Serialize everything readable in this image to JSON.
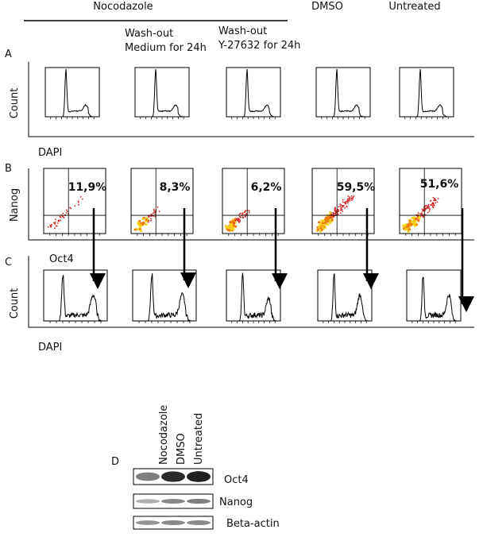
{
  "header": {
    "columns": [
      {
        "lines": [
          "Nocodazole"
        ]
      },
      {
        "lines": [
          "Wash-out",
          "Medium for 24h"
        ]
      },
      {
        "lines": [
          "Wash-out",
          "Y-27632 for 24h"
        ]
      },
      {
        "lines": [
          "DMSO"
        ]
      },
      {
        "lines": [
          "Untreated"
        ]
      }
    ]
  },
  "panels": [
    {
      "label": "A",
      "y_label": "Count",
      "x_label": "DAPI"
    },
    {
      "label": "B",
      "y_label": "Nanog",
      "x_label": "Oct4",
      "percentages": [
        "11,9%",
        "8,3%",
        "6,2%",
        "59,5%",
        "51,6%"
      ]
    },
    {
      "label": "C",
      "y_label": "Count",
      "x_label": "DAPI"
    },
    {
      "label": "D"
    }
  ],
  "blot": {
    "lanes": [
      "Nocodazole",
      "DMSO",
      "Untreated"
    ],
    "rows": [
      "Oct4",
      "Nanog",
      "Beta-actin"
    ]
  }
}
